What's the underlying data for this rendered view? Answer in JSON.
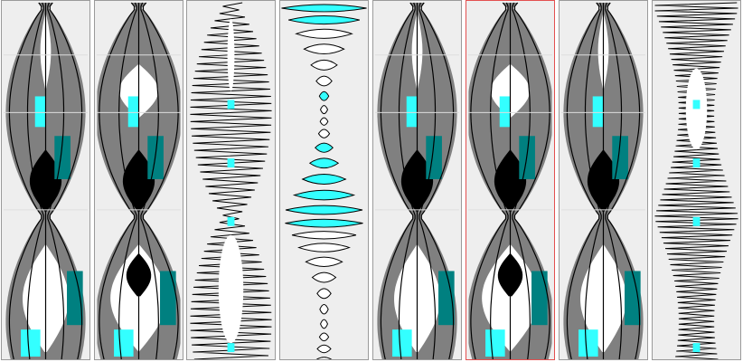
{
  "gallery": {
    "selected_index": 5,
    "colors": {
      "panel_bg": "#eeeeee",
      "panel_border": "#9a9a9a",
      "selected_border": "#e35050",
      "gray_fill": "#808080",
      "cyan_fill": "#33ffff",
      "teal_fill": "#008080",
      "ink": "#000000",
      "white": "#ffffff"
    },
    "items": [
      {
        "name": "pattern-thumbnail-1",
        "style": "lens"
      },
      {
        "name": "pattern-thumbnail-2",
        "style": "lens-wide"
      },
      {
        "name": "pattern-thumbnail-3",
        "style": "zigzag"
      },
      {
        "name": "pattern-thumbnail-4",
        "style": "outline"
      },
      {
        "name": "pattern-thumbnail-5",
        "style": "lens"
      },
      {
        "name": "pattern-thumbnail-6",
        "style": "lens-wide"
      },
      {
        "name": "pattern-thumbnail-7",
        "style": "lens"
      },
      {
        "name": "pattern-thumbnail-8",
        "style": "zigzag-dense"
      }
    ]
  }
}
